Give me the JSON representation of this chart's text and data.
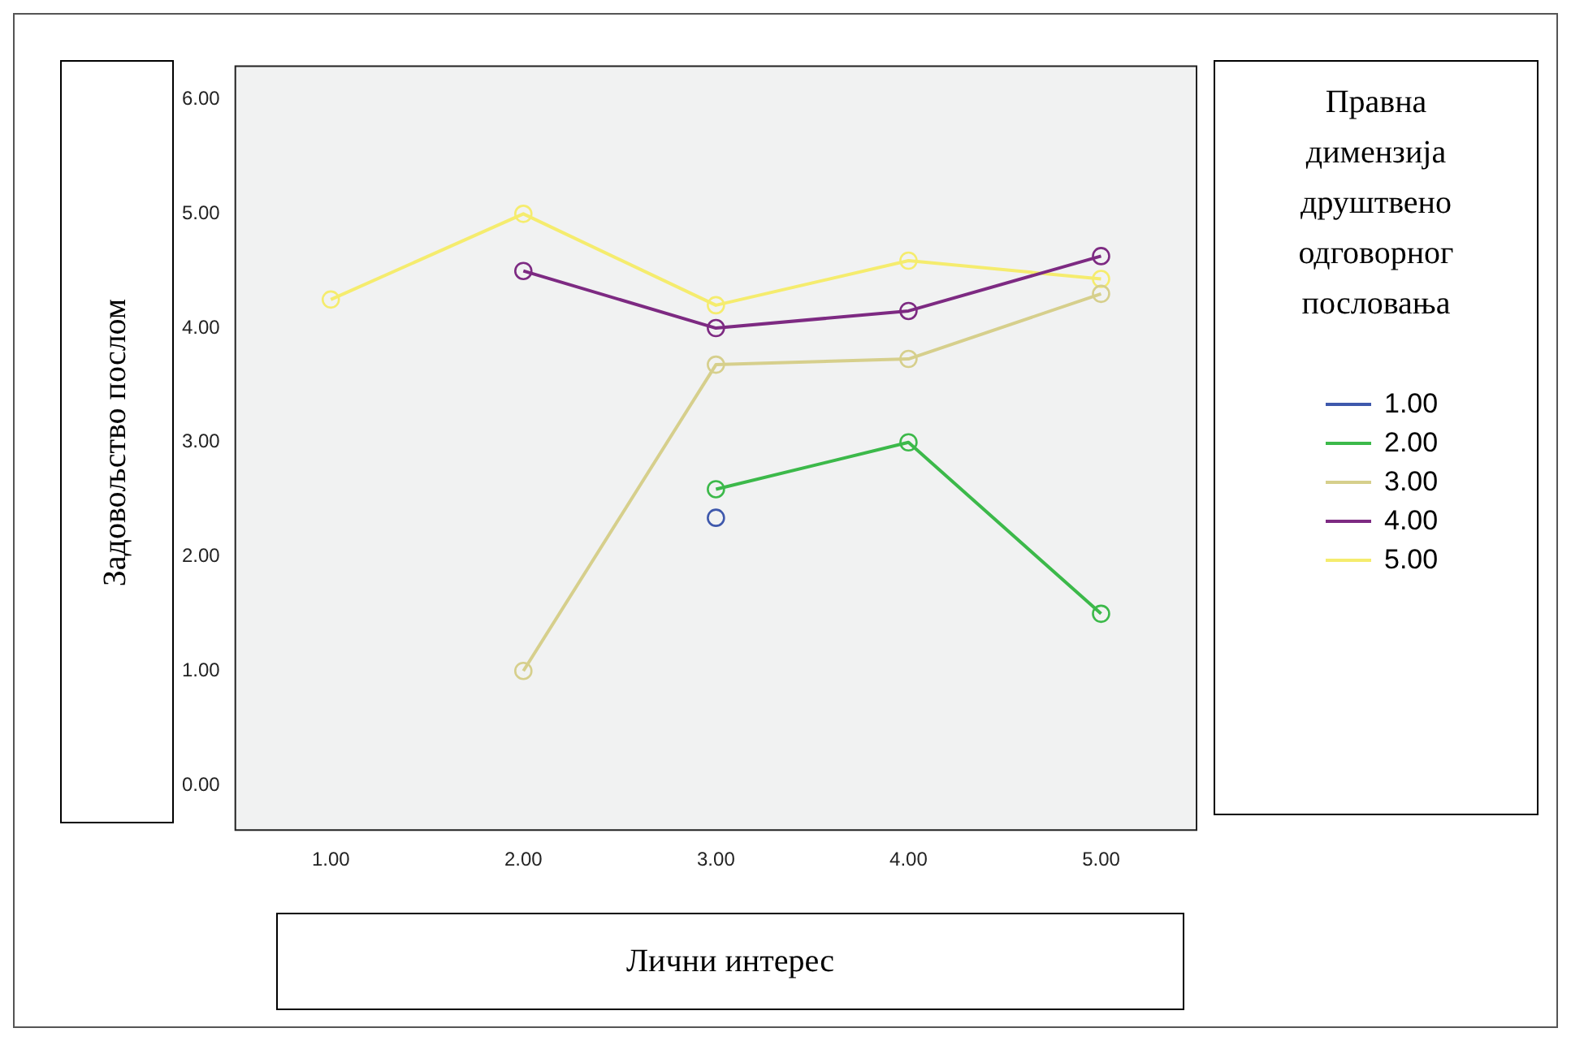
{
  "chart_data": {
    "type": "line",
    "xlabel": "Лични интерес",
    "ylabel": "Задовољство послом",
    "legend_title": "Правна димензија друштвено одговорног пословања",
    "categories": [
      "1.00",
      "2.00",
      "3.00",
      "4.00",
      "5.00"
    ],
    "series": [
      {
        "name": "1.00",
        "color": "#3e58ac",
        "values": [
          null,
          null,
          2.34,
          null,
          null
        ]
      },
      {
        "name": "2.00",
        "color": "#3cb94a",
        "values": [
          null,
          null,
          2.59,
          3.0,
          1.5
        ]
      },
      {
        "name": "3.00",
        "color": "#d6cf8c",
        "values": [
          null,
          1.0,
          3.68,
          3.73,
          4.3
        ]
      },
      {
        "name": "4.00",
        "color": "#7d2a82",
        "values": [
          null,
          4.5,
          4.0,
          4.15,
          4.63
        ]
      },
      {
        "name": "5.00",
        "color": "#f5ec6e",
        "values": [
          4.25,
          5.0,
          4.2,
          4.59,
          4.43
        ]
      }
    ],
    "ylim": [
      -0.4,
      6.3
    ],
    "yticks": [
      {
        "value": 0,
        "label": "0.00"
      },
      {
        "value": 1,
        "label": "1.00"
      },
      {
        "value": 2,
        "label": "2.00"
      },
      {
        "value": 3,
        "label": "3.00"
      },
      {
        "value": 4,
        "label": "4.00"
      },
      {
        "value": 5,
        "label": "5.00"
      },
      {
        "value": 6,
        "label": "6.00"
      }
    ],
    "grid": false,
    "legend": "right",
    "marker": "circle",
    "line_style": "solid"
  }
}
